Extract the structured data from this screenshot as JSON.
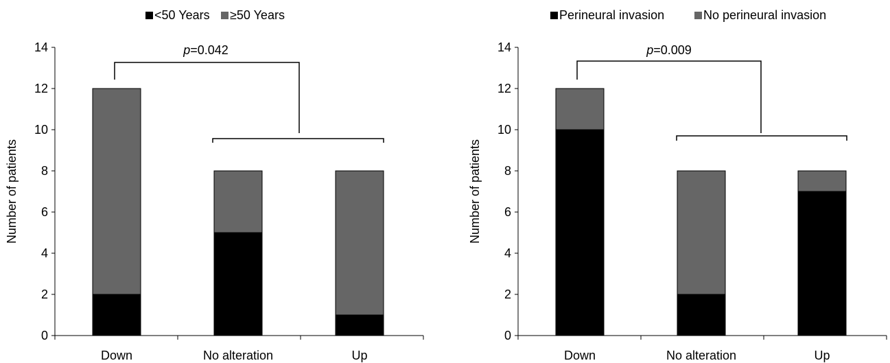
{
  "chart_data": [
    {
      "type": "bar",
      "stacked": true,
      "ylabel": "Number of patients",
      "xlabel": "",
      "ylim": [
        0,
        14
      ],
      "yticks": [
        0,
        2,
        4,
        6,
        8,
        10,
        12,
        14
      ],
      "categories": [
        "Down",
        "No alteration",
        "Up"
      ],
      "legend_position": "top-center",
      "series": [
        {
          "name": "<50 Years",
          "color": "#000000",
          "values": [
            2,
            5,
            1
          ]
        },
        {
          "name": "≥50 Years",
          "color": "#666666",
          "values": [
            10,
            3,
            7
          ]
        }
      ],
      "annotation": {
        "prefix": "p",
        "value": "=0.042"
      }
    },
    {
      "type": "bar",
      "stacked": true,
      "ylabel": "Number of patients",
      "xlabel": "",
      "ylim": [
        0,
        14
      ],
      "yticks": [
        0,
        2,
        4,
        6,
        8,
        10,
        12,
        14
      ],
      "categories": [
        "Down",
        "No alteration",
        "Up"
      ],
      "legend_position": "top-center",
      "series": [
        {
          "name": "Perineural invasion",
          "color": "#000000",
          "values": [
            10,
            2,
            7
          ]
        },
        {
          "name": "No perineural invasion",
          "color": "#666666",
          "values": [
            2,
            6,
            1
          ]
        }
      ],
      "annotation": {
        "prefix": "p",
        "value": "=0.009"
      }
    }
  ]
}
